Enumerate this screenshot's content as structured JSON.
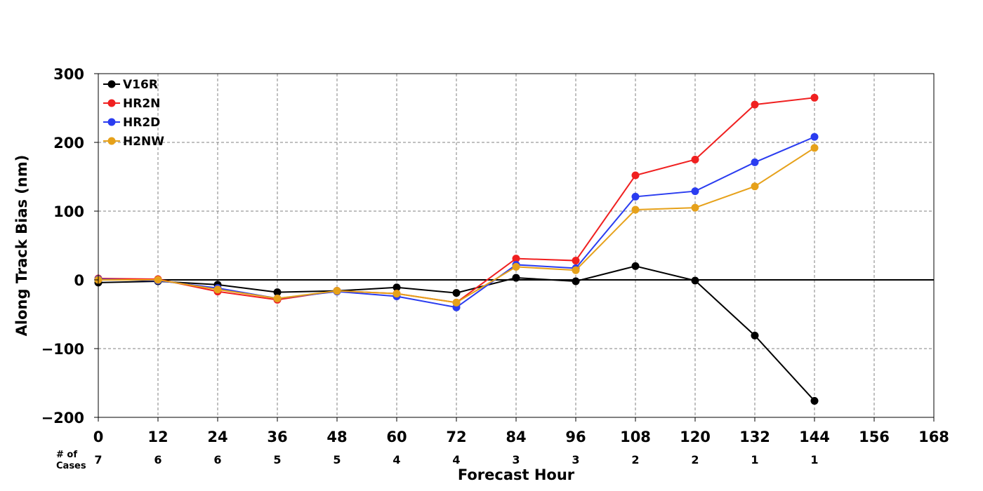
{
  "chart_data": {
    "type": "line",
    "title": "",
    "xlabel": "Forecast Hour",
    "ylabel": "Along Track Bias (nm)",
    "xlim": [
      0,
      168
    ],
    "ylim": [
      -200,
      300
    ],
    "x_ticks": [
      0,
      12,
      24,
      36,
      48,
      60,
      72,
      84,
      96,
      108,
      120,
      132,
      144,
      156,
      168
    ],
    "y_ticks": [
      -200,
      -100,
      0,
      100,
      200,
      300
    ],
    "x_tick_labels": [
      "0",
      "12",
      "24",
      "36",
      "48",
      "60",
      "72",
      "84",
      "96",
      "108",
      "120",
      "132",
      "144",
      "156",
      "168"
    ],
    "y_tick_labels": [
      "−200",
      "−100",
      "0",
      "100",
      "200",
      "300"
    ],
    "grid": true,
    "legend_position": "top-left",
    "zero_line": true,
    "x": [
      0,
      12,
      24,
      36,
      48,
      60,
      72,
      84,
      96,
      108,
      120,
      132,
      144
    ],
    "series": [
      {
        "name": "V16R",
        "color": "#000000",
        "values": [
          -4,
          -2,
          -7,
          -18,
          -16,
          -11,
          -19,
          3,
          -2,
          20,
          -1,
          -81,
          -176
        ]
      },
      {
        "name": "HR2N",
        "color": "#f02020",
        "values": [
          2,
          1,
          -17,
          -29,
          -16,
          -20,
          -33,
          31,
          28,
          152,
          175,
          255,
          265
        ]
      },
      {
        "name": "HR2D",
        "color": "#2a3cf0",
        "values": [
          1,
          -1,
          -12,
          -27,
          -17,
          -24,
          -40,
          22,
          17,
          121,
          129,
          171,
          208
        ]
      },
      {
        "name": "H2NW",
        "color": "#e6a11a",
        "values": [
          0,
          0,
          -14,
          -27,
          -16,
          -20,
          -33,
          19,
          14,
          102,
          105,
          136,
          192
        ]
      }
    ],
    "cases": {
      "label_line1": "# of",
      "label_line2": "Cases",
      "values": [
        "7",
        "6",
        "6",
        "5",
        "5",
        "4",
        "4",
        "3",
        "3",
        "2",
        "2",
        "1",
        "1"
      ]
    }
  }
}
